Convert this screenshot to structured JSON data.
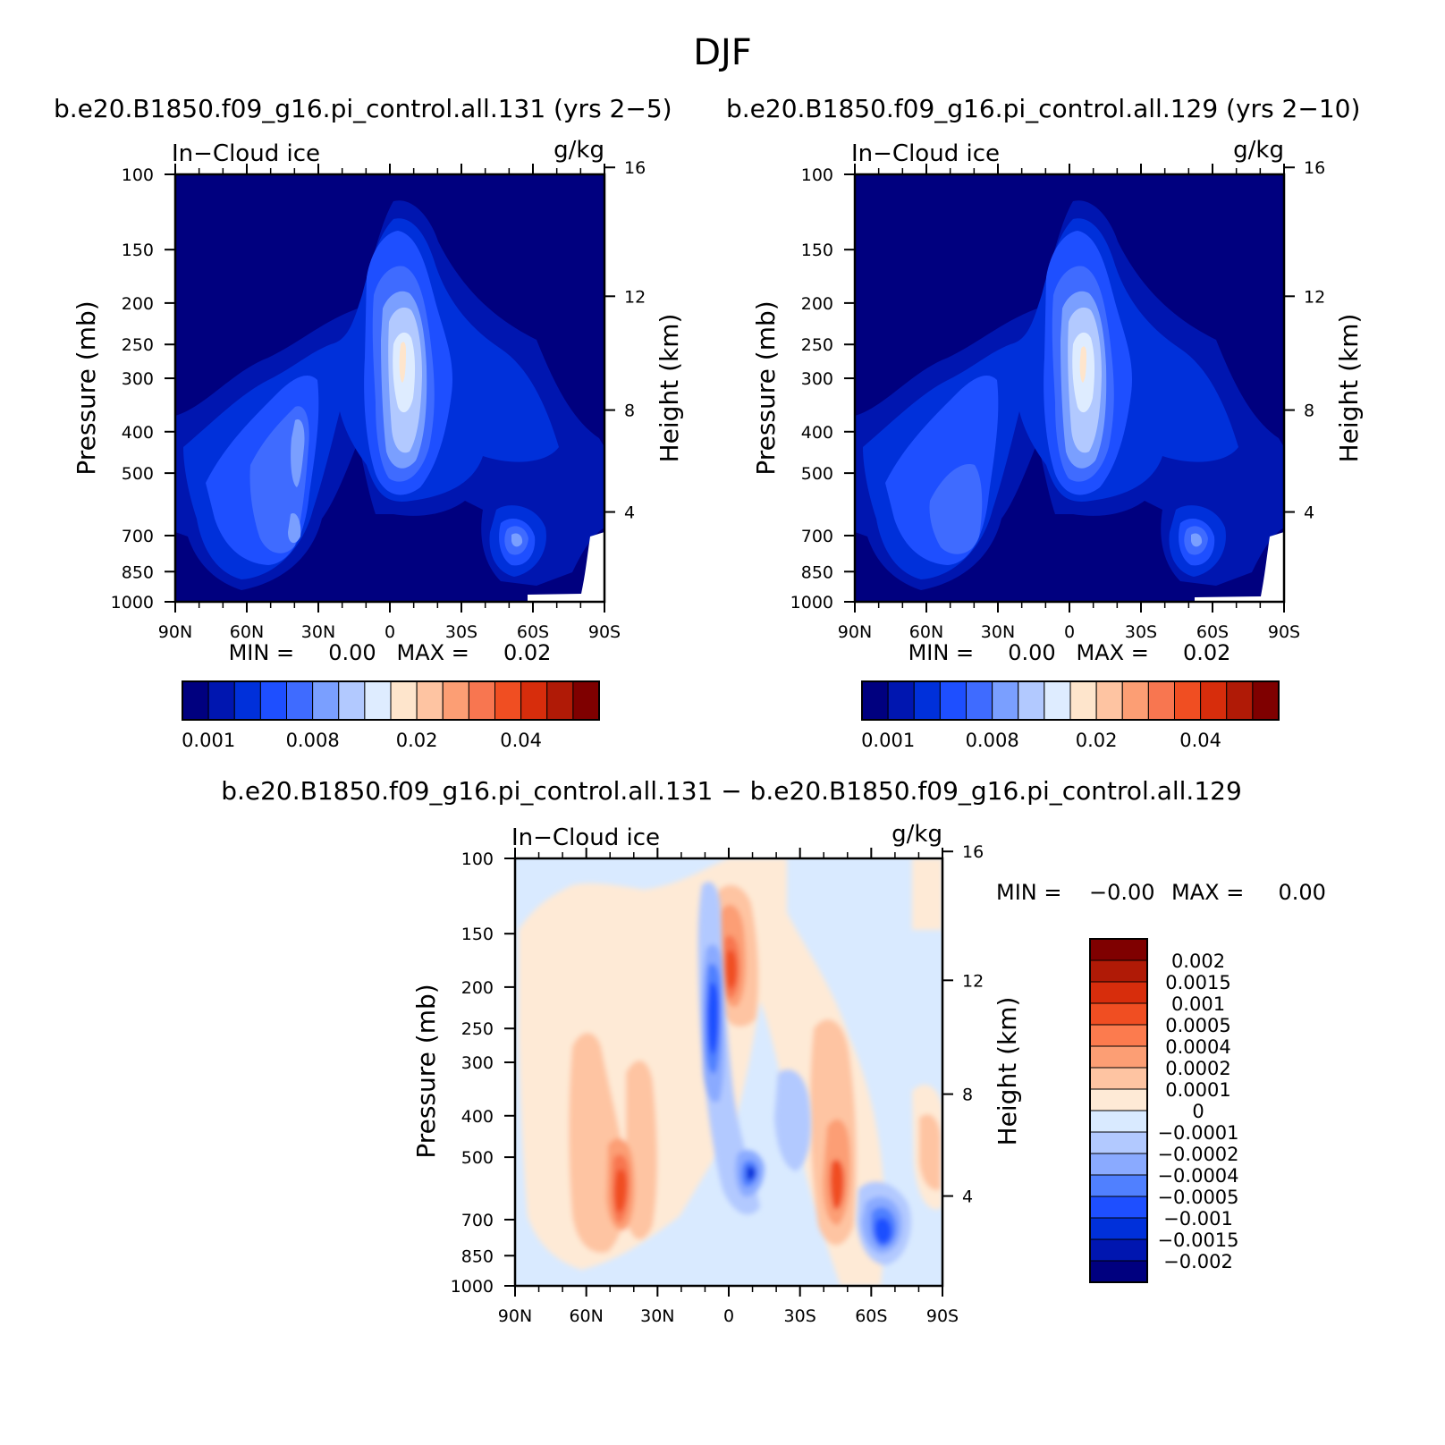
{
  "figure_title": "DJF",
  "panels": {
    "left": {
      "title": "b.e20.B1850.f09_g16.pi_control.all.131 (yrs 2−5)",
      "label_left": "In−Cloud ice",
      "label_right": "g/kg",
      "ylabel": "Pressure (mb)",
      "ylabel_right": "Height (km)",
      "minmax": "MIN =     0.00   MAX =     0.02",
      "colorbar_ticks": [
        "0.001",
        "0.008",
        "0.02",
        "0.04"
      ]
    },
    "right": {
      "title": "b.e20.B1850.f09_g16.pi_control.all.129 (yrs 2−10)",
      "label_left": "In−Cloud ice",
      "label_right": "g/kg",
      "ylabel": "Pressure (mb)",
      "ylabel_right": "Height (km)",
      "minmax": "MIN =     0.00   MAX =     0.02",
      "colorbar_ticks": [
        "0.001",
        "0.008",
        "0.02",
        "0.04"
      ]
    },
    "diff": {
      "title": "b.e20.B1850.f09_g16.pi_control.all.131 − b.e20.B1850.f09_g16.pi_control.all.129",
      "label_left": "In−Cloud ice",
      "label_right": "g/kg",
      "ylabel": "Pressure (mb)",
      "ylabel_right": "Height (km)",
      "minmax_min": "MIN =    −0.00",
      "minmax_max": "MAX =     0.00",
      "colorbar_labels": [
        "0.002",
        "0.0015",
        "0.001",
        "0.0005",
        "0.0004",
        "0.0002",
        "0.0001",
        "0",
        "−0.0001",
        "−0.0002",
        "−0.0004",
        "−0.0005",
        "−0.001",
        "−0.0015",
        "−0.002"
      ]
    }
  },
  "colors": {
    "sequential": [
      "#00007f",
      "#0016b0",
      "#0030da",
      "#1e4fff",
      "#3f6bff",
      "#7a9fff",
      "#b2c9ff",
      "#deecff",
      "#fee5cc",
      "#fec4a2",
      "#fc9e74",
      "#f87650",
      "#f04e22",
      "#d72d0c",
      "#b01a06",
      "#7f0000"
    ],
    "diverging": [
      "#7f0000",
      "#b01a06",
      "#d72d0c",
      "#f04e22",
      "#fc7b4e",
      "#fc9e74",
      "#fec4a2",
      "#feead6",
      "#d9eaff",
      "#b2c9ff",
      "#8aaaff",
      "#5080ff",
      "#1e4fff",
      "#0030da",
      "#0016b0",
      "#00007f"
    ]
  },
  "chart_data": [
    {
      "type": "heatmap",
      "title": "b.e20.B1850.f09_g16.pi_control.all.131 (yrs 2−5)",
      "ylabel": "Pressure (mb)",
      "y2label": "Height (km)",
      "x_ticks": [
        "90N",
        "60N",
        "30N",
        "0",
        "30S",
        "60S",
        "90S"
      ],
      "x_tick_values": [
        90,
        60,
        30,
        0,
        -30,
        -60,
        -90
      ],
      "y_ticks": [
        100,
        150,
        200,
        250,
        300,
        400,
        500,
        700,
        850,
        1000
      ],
      "y2_ticks": [
        4,
        8,
        12,
        16
      ],
      "ylim": [
        1000,
        100
      ],
      "y_scale": "log",
      "levels": [
        0.001,
        0.002,
        0.004,
        0.006,
        0.008,
        0.01,
        0.015,
        0.02,
        0.025,
        0.03,
        0.035,
        0.04,
        0.045,
        0.05,
        0.06
      ],
      "units": "g/kg",
      "min": 0.0,
      "max": 0.02,
      "features": [
        {
          "lat": -3,
          "p": 330,
          "value": 0.02
        },
        {
          "lat": -5,
          "p": 520,
          "value": 0.01
        },
        {
          "lat": 32,
          "p": 650,
          "value": 0.008
        },
        {
          "lat": 32,
          "p": 420,
          "value": 0.006
        },
        {
          "lat": -55,
          "p": 800,
          "value": 0.008
        },
        {
          "lat": 25,
          "p": 200,
          "value": 0.001
        }
      ]
    },
    {
      "type": "heatmap",
      "title": "b.e20.B1850.f09_g16.pi_control.all.129 (yrs 2−10)",
      "ylabel": "Pressure (mb)",
      "y2label": "Height (km)",
      "x_ticks": [
        "90N",
        "60N",
        "30N",
        "0",
        "30S",
        "60S",
        "90S"
      ],
      "x_tick_values": [
        90,
        60,
        30,
        0,
        -30,
        -60,
        -90
      ],
      "y_ticks": [
        100,
        150,
        200,
        250,
        300,
        400,
        500,
        700,
        850,
        1000
      ],
      "y2_ticks": [
        4,
        8,
        12,
        16
      ],
      "ylim": [
        1000,
        100
      ],
      "y_scale": "log",
      "levels": [
        0.001,
        0.002,
        0.004,
        0.006,
        0.008,
        0.01,
        0.015,
        0.02,
        0.025,
        0.03,
        0.035,
        0.04,
        0.045,
        0.05,
        0.06
      ],
      "units": "g/kg",
      "min": 0.0,
      "max": 0.02,
      "features": [
        {
          "lat": -3,
          "p": 330,
          "value": 0.02
        },
        {
          "lat": -5,
          "p": 520,
          "value": 0.01
        },
        {
          "lat": 40,
          "p": 650,
          "value": 0.008
        },
        {
          "lat": 30,
          "p": 420,
          "value": 0.006
        },
        {
          "lat": -55,
          "p": 800,
          "value": 0.008
        }
      ]
    },
    {
      "type": "heatmap",
      "title": "b.e20.B1850.f09_g16.pi_control.all.131 − b.e20.B1850.f09_g16.pi_control.all.129",
      "ylabel": "Pressure (mb)",
      "y2label": "Height (km)",
      "x_ticks": [
        "90N",
        "60N",
        "30N",
        "0",
        "30S",
        "60S",
        "90S"
      ],
      "x_tick_values": [
        90,
        60,
        30,
        0,
        -30,
        -60,
        -90
      ],
      "y_ticks": [
        100,
        150,
        200,
        250,
        300,
        400,
        500,
        700,
        850,
        1000
      ],
      "y2_ticks": [
        4,
        8,
        12,
        16
      ],
      "ylim": [
        1000,
        100
      ],
      "y_scale": "log",
      "levels": [
        -0.002,
        -0.0015,
        -0.001,
        -0.0005,
        -0.0004,
        -0.0002,
        -0.0001,
        0,
        0.0001,
        0.0002,
        0.0004,
        0.0005,
        0.001,
        0.0015,
        0.002
      ],
      "units": "g/kg",
      "min": -0.0,
      "max": 0.0,
      "features": [
        {
          "lat": -2,
          "p": 220,
          "value": 0.001
        },
        {
          "lat": 8,
          "p": 250,
          "value": -0.001
        },
        {
          "lat": 45,
          "p": 700,
          "value": 0.001
        },
        {
          "lat": -46,
          "p": 700,
          "value": 0.001
        },
        {
          "lat": -60,
          "p": 770,
          "value": -0.001
        },
        {
          "lat": -5,
          "p": 600,
          "value": -0.001
        },
        {
          "lat": -30,
          "p": 420,
          "value": -0.0005
        }
      ]
    }
  ]
}
